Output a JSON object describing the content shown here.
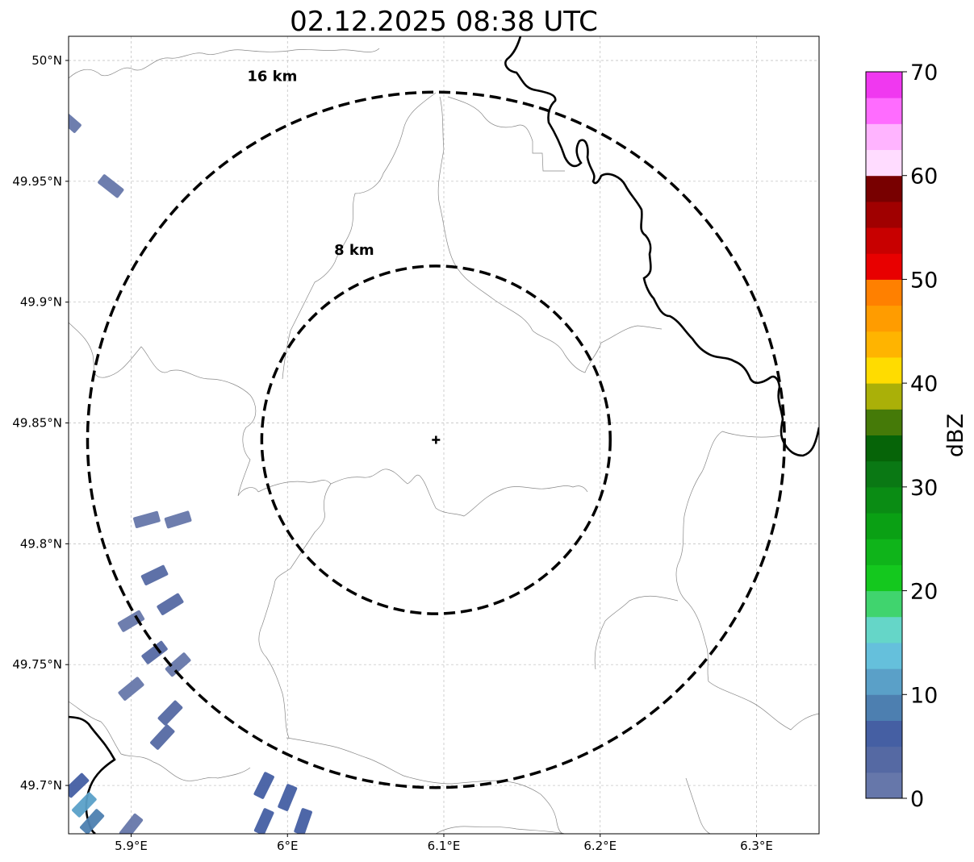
{
  "title": "02.12.2025 08:38 UTC",
  "map": {
    "lon_range": [
      5.86,
      6.34
    ],
    "lat_range": [
      49.68,
      50.01
    ],
    "lon_ticks": [
      {
        "value": 5.9,
        "label": "5.9°E"
      },
      {
        "value": 6.0,
        "label": "6°E"
      },
      {
        "value": 6.1,
        "label": "6.1°E"
      },
      {
        "value": 6.2,
        "label": "6.2°E"
      },
      {
        "value": 6.3,
        "label": "6.3°E"
      }
    ],
    "lat_ticks": [
      {
        "value": 49.7,
        "label": "49.7°N"
      },
      {
        "value": 49.75,
        "label": "49.75°N"
      },
      {
        "value": 49.8,
        "label": "49.8°N"
      },
      {
        "value": 49.85,
        "label": "49.85°N"
      },
      {
        "value": 49.9,
        "label": "49.9°N"
      },
      {
        "value": 49.95,
        "label": "49.95°N"
      },
      {
        "value": 50.0,
        "label": "50°N"
      }
    ],
    "gridlines": true,
    "center": {
      "lon": 6.095,
      "lat": 49.843
    },
    "rings": [
      {
        "radius_km": 8,
        "label": "8 km"
      },
      {
        "radius_km": 16,
        "label": "16 km"
      }
    ]
  },
  "colorbar": {
    "label": "dBZ",
    "min": 0,
    "max": 70,
    "ticks": [
      "0",
      "10",
      "20",
      "30",
      "40",
      "50",
      "60",
      "70"
    ],
    "colors": [
      "#6677aa",
      "#5569a3",
      "#455fa3",
      "#4d7fb0",
      "#5aa0c8",
      "#65c0dc",
      "#65d6c8",
      "#40d46e",
      "#14c81e",
      "#0fb41a",
      "#0aa014",
      "#0a8c14",
      "#0a7814",
      "#066408",
      "#457a08",
      "#aab008",
      "#ffdc00",
      "#ffb400",
      "#ff9c00",
      "#ff8000",
      "#e80000",
      "#c80000",
      "#a00000",
      "#780000",
      "#ffdcff",
      "#ffb4ff",
      "#ff6cff",
      "#f038f0"
    ]
  },
  "chart_data": {
    "type": "heatmap",
    "title": "02.12.2025 08:38 UTC",
    "xlabel": "",
    "ylabel": "",
    "xlim": [
      5.86,
      6.34
    ],
    "ylim": [
      49.68,
      50.01
    ],
    "colorbar_label": "dBZ",
    "colorbar_range": [
      0,
      70
    ],
    "reflectivity_cells": [
      {
        "lon": 5.86,
        "lat": 49.975,
        "dbz": 2
      },
      {
        "lon": 5.887,
        "lat": 49.948,
        "dbz": 2
      },
      {
        "lon": 5.91,
        "lat": 49.81,
        "dbz": 2
      },
      {
        "lon": 5.93,
        "lat": 49.81,
        "dbz": 2
      },
      {
        "lon": 5.915,
        "lat": 49.787,
        "dbz": 3
      },
      {
        "lon": 5.925,
        "lat": 49.775,
        "dbz": 3
      },
      {
        "lon": 5.9,
        "lat": 49.768,
        "dbz": 2
      },
      {
        "lon": 5.915,
        "lat": 49.755,
        "dbz": 3
      },
      {
        "lon": 5.93,
        "lat": 49.75,
        "dbz": 2
      },
      {
        "lon": 5.9,
        "lat": 49.74,
        "dbz": 2
      },
      {
        "lon": 5.925,
        "lat": 49.73,
        "dbz": 3
      },
      {
        "lon": 5.92,
        "lat": 49.72,
        "dbz": 3
      },
      {
        "lon": 5.865,
        "lat": 49.7,
        "dbz": 6
      },
      {
        "lon": 5.87,
        "lat": 49.692,
        "dbz": 12
      },
      {
        "lon": 5.875,
        "lat": 49.685,
        "dbz": 8
      },
      {
        "lon": 5.985,
        "lat": 49.7,
        "dbz": 5
      },
      {
        "lon": 6.0,
        "lat": 49.695,
        "dbz": 6
      },
      {
        "lon": 6.01,
        "lat": 49.685,
        "dbz": 6
      },
      {
        "lon": 5.985,
        "lat": 49.685,
        "dbz": 5
      },
      {
        "lon": 5.9,
        "lat": 49.683,
        "dbz": 2
      }
    ]
  }
}
